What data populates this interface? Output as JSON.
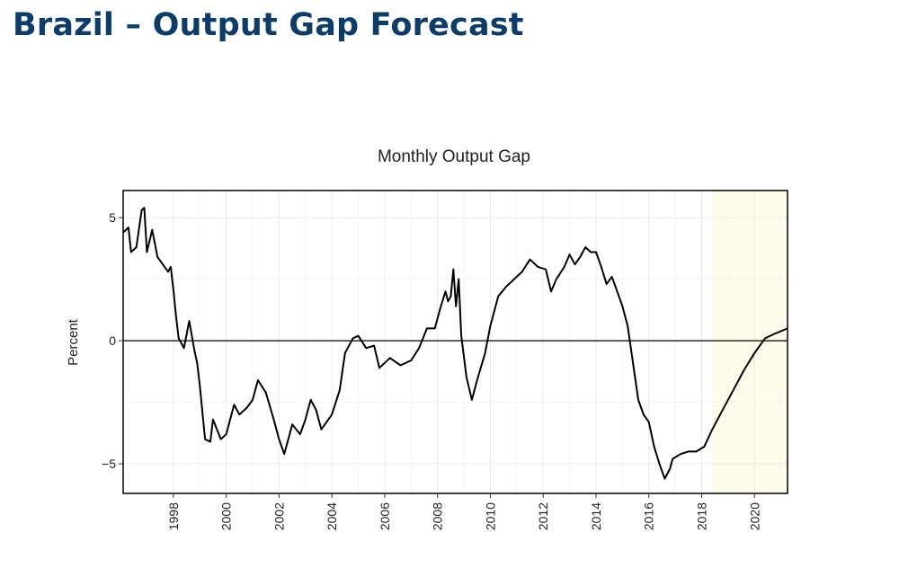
{
  "page": {
    "title": "Brazil – Output Gap Forecast"
  },
  "chart_data": {
    "type": "line",
    "title": "Monthly Output Gap",
    "xlabel": "",
    "ylabel": "Percent",
    "xlim": [
      1996.1,
      2021.25
    ],
    "ylim": [
      -6.2,
      6.1
    ],
    "x_ticks": [
      1998,
      2000,
      2002,
      2004,
      2006,
      2008,
      2010,
      2012,
      2014,
      2016,
      2018,
      2020
    ],
    "y_ticks": [
      -5,
      0,
      5
    ],
    "grid": true,
    "zero_line": true,
    "forecast_region": {
      "start": 2018.4,
      "end": 2021.25,
      "color": "#fdfbea"
    },
    "line_color": "#000000",
    "series": [
      {
        "name": "",
        "x": [
          1996.1,
          1996.3,
          1996.4,
          1996.6,
          1996.8,
          1996.9,
          1997.0,
          1997.2,
          1997.4,
          1997.6,
          1997.8,
          1997.9,
          1998.0,
          1998.1,
          1998.2,
          1998.4,
          1998.6,
          1998.8,
          1998.9,
          1999.0,
          1999.2,
          1999.4,
          1999.5,
          1999.8,
          2000.0,
          2000.3,
          2000.5,
          2000.8,
          2001.0,
          2001.2,
          2001.5,
          2001.8,
          2002.0,
          2002.2,
          2002.5,
          2002.8,
          2003.0,
          2003.2,
          2003.4,
          2003.6,
          2004.0,
          2004.3,
          2004.5,
          2004.8,
          2005.0,
          2005.3,
          2005.6,
          2005.8,
          2006.2,
          2006.6,
          2007.0,
          2007.3,
          2007.6,
          2007.9,
          2008.1,
          2008.3,
          2008.4,
          2008.5,
          2008.6,
          2008.7,
          2008.8,
          2008.9,
          2009.1,
          2009.3,
          2009.5,
          2009.8,
          2010.0,
          2010.3,
          2010.6,
          2010.9,
          2011.2,
          2011.5,
          2011.8,
          2012.1,
          2012.3,
          2012.5,
          2012.8,
          2013.0,
          2013.2,
          2013.4,
          2013.6,
          2013.8,
          2014.0,
          2014.2,
          2014.4,
          2014.6,
          2014.8,
          2015.0,
          2015.2,
          2015.4,
          2015.6,
          2015.8,
          2016.0,
          2016.2,
          2016.4,
          2016.6,
          2016.8,
          2016.9,
          2017.2,
          2017.5,
          2017.8,
          2018.1,
          2018.4,
          2018.8,
          2019.2,
          2019.6,
          2020.0,
          2020.4,
          2020.8,
          2021.25
        ],
        "y": [
          4.4,
          4.6,
          3.6,
          3.8,
          5.3,
          5.4,
          3.6,
          4.5,
          3.4,
          3.1,
          2.8,
          3.0,
          2.1,
          1.0,
          0.1,
          -0.3,
          0.8,
          -0.4,
          -0.9,
          -1.8,
          -4.0,
          -4.1,
          -3.2,
          -4.0,
          -3.8,
          -2.6,
          -3.0,
          -2.7,
          -2.4,
          -1.6,
          -2.1,
          -3.2,
          -4.0,
          -4.6,
          -3.4,
          -3.8,
          -3.2,
          -2.4,
          -2.8,
          -3.6,
          -3.0,
          -2.0,
          -0.5,
          0.1,
          0.2,
          -0.3,
          -0.2,
          -1.1,
          -0.7,
          -1.0,
          -0.8,
          -0.3,
          0.5,
          0.5,
          1.3,
          2.0,
          1.6,
          1.8,
          2.9,
          1.4,
          2.5,
          0.2,
          -1.5,
          -2.4,
          -1.6,
          -0.5,
          0.6,
          1.8,
          2.2,
          2.5,
          2.8,
          3.3,
          3.0,
          2.9,
          2.0,
          2.5,
          3.0,
          3.5,
          3.1,
          3.4,
          3.8,
          3.6,
          3.6,
          3.0,
          2.3,
          2.6,
          2.0,
          1.4,
          0.6,
          -0.9,
          -2.4,
          -3.0,
          -3.3,
          -4.3,
          -5.0,
          -5.6,
          -5.2,
          -4.8,
          -4.6,
          -4.5,
          -4.5,
          -4.3,
          -3.6,
          -2.8,
          -2.0,
          -1.2,
          -0.5,
          0.1,
          0.3,
          0.5
        ]
      }
    ]
  }
}
